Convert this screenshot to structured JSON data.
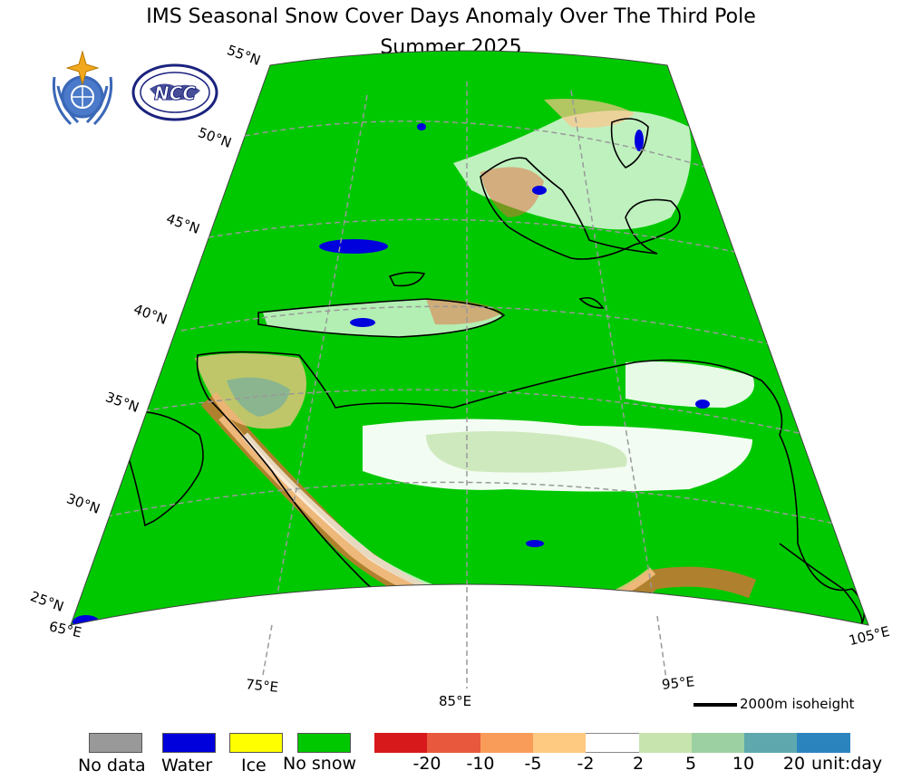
{
  "title": {
    "line1": "IMS Seasonal Snow Cover Days Anomaly Over The Third Pole",
    "line2": "Summer 2025"
  },
  "logos": [
    {
      "name": "wmo-logo"
    },
    {
      "name": "ncc-logo",
      "text": "NCC"
    }
  ],
  "map": {
    "latitude_labels": [
      "55°N",
      "50°N",
      "45°N",
      "40°N",
      "35°N",
      "30°N",
      "25°N"
    ],
    "longitude_labels": [
      "65°E",
      "75°E",
      "85°E",
      "95°E",
      "105°E"
    ],
    "scale_bar_label": "2000m isoheight",
    "colors": {
      "no_snow": "#00c800",
      "water": "#0000dd",
      "anomaly_low": "#e96a3e",
      "anomaly_mid": "#fdc58c",
      "anomaly_neutral": "#ffffff",
      "anomaly_pos": "#c6e4b0",
      "contour": "#000000",
      "grid": "#999999"
    }
  },
  "legend": {
    "categories": [
      {
        "label": "No data",
        "color": "#999999"
      },
      {
        "label": "Water",
        "color": "#0000dd"
      },
      {
        "label": "Ice",
        "color": "#ffff00"
      },
      {
        "label": "No snow",
        "color": "#00c800"
      }
    ],
    "colorbar": {
      "colors": [
        "#d7191c",
        "#e8583c",
        "#f99c5a",
        "#fec980",
        "#ffffff",
        "#c7e4ae",
        "#9cd0a2",
        "#5fa8ae",
        "#2c84bf"
      ],
      "ticks": [
        "-20",
        "-10",
        "-5",
        "-2",
        "2",
        "5",
        "10",
        "20"
      ],
      "unit": "unit:day"
    }
  }
}
